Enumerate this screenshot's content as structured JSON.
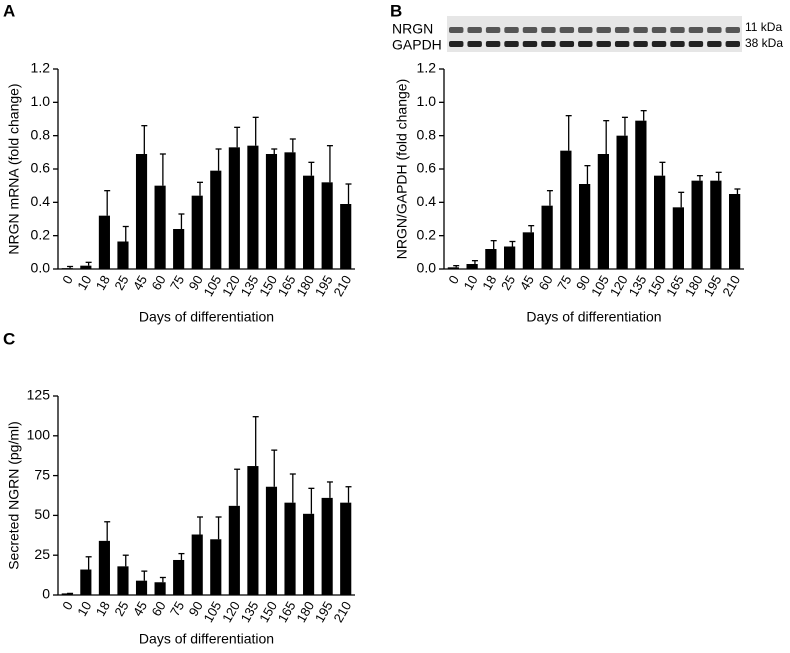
{
  "chart_data": [
    {
      "type": "bar",
      "panel": "A",
      "ylabel": "NRGN mRNA (fold change)",
      "xlabel": "Days of differentiation",
      "categories": [
        "0",
        "10",
        "18",
        "25",
        "45",
        "60",
        "75",
        "90",
        "105",
        "120",
        "135",
        "150",
        "165",
        "180",
        "195",
        "210"
      ],
      "values": [
        0.005,
        0.02,
        0.32,
        0.165,
        0.69,
        0.5,
        0.24,
        0.44,
        0.59,
        0.73,
        0.74,
        0.69,
        0.7,
        0.56,
        0.52,
        0.39
      ],
      "errors": [
        0.01,
        0.02,
        0.15,
        0.09,
        0.17,
        0.19,
        0.09,
        0.08,
        0.13,
        0.12,
        0.17,
        0.03,
        0.08,
        0.08,
        0.22,
        0.12
      ],
      "color": "#000000",
      "ylim": [
        0,
        1.2
      ],
      "yticks": [
        {
          "value": 0,
          "label": "0.0"
        },
        0.2,
        0.4,
        0.6,
        0.8,
        {
          "value": 1,
          "label": "1.0"
        },
        1.2
      ]
    },
    {
      "type": "bar",
      "panel": "B",
      "ylabel": "NRGN/GAPDH (fold change)",
      "xlabel": "Days of differentiation",
      "blot": {
        "rows": [
          "NRGN",
          "GAPDH"
        ],
        "sizes": [
          "11 kDa",
          "38 kDa"
        ]
      },
      "categories": [
        "0",
        "10",
        "18",
        "25",
        "45",
        "60",
        "75",
        "90",
        "105",
        "120",
        "135",
        "150",
        "165",
        "180",
        "195",
        "210"
      ],
      "values": [
        0.01,
        0.03,
        0.12,
        0.135,
        0.22,
        0.38,
        0.71,
        0.51,
        0.69,
        0.8,
        0.89,
        0.56,
        0.37,
        0.53,
        0.53,
        0.45
      ],
      "errors": [
        0.01,
        0.02,
        0.05,
        0.03,
        0.04,
        0.09,
        0.21,
        0.11,
        0.2,
        0.11,
        0.06,
        0.08,
        0.09,
        0.03,
        0.05,
        0.03
      ],
      "color": "#000000",
      "ylim": [
        0,
        1.2
      ],
      "yticks": [
        {
          "value": 0,
          "label": "0.0"
        },
        0.2,
        0.4,
        0.6,
        0.8,
        {
          "value": 1,
          "label": "1.0"
        },
        1.2
      ]
    },
    {
      "type": "bar",
      "panel": "C",
      "ylabel": "Secreted NGRN (pg/ml)",
      "xlabel": "Days of differentiation",
      "categories": [
        "0",
        "10",
        "18",
        "25",
        "45",
        "60",
        "75",
        "90",
        "105",
        "120",
        "135",
        "150",
        "165",
        "180",
        "195",
        "210"
      ],
      "values": [
        1,
        16,
        34,
        18,
        9,
        8,
        22,
        38,
        35,
        56,
        81,
        68,
        58,
        51,
        61,
        58
      ],
      "errors": [
        0,
        8,
        12,
        7,
        6,
        3,
        4,
        11,
        14,
        23,
        31,
        23,
        18,
        16,
        10,
        10
      ],
      "color": "#000000",
      "ylim": [
        0,
        125
      ],
      "yticks": [
        0,
        25,
        50,
        75,
        100,
        125
      ]
    }
  ]
}
